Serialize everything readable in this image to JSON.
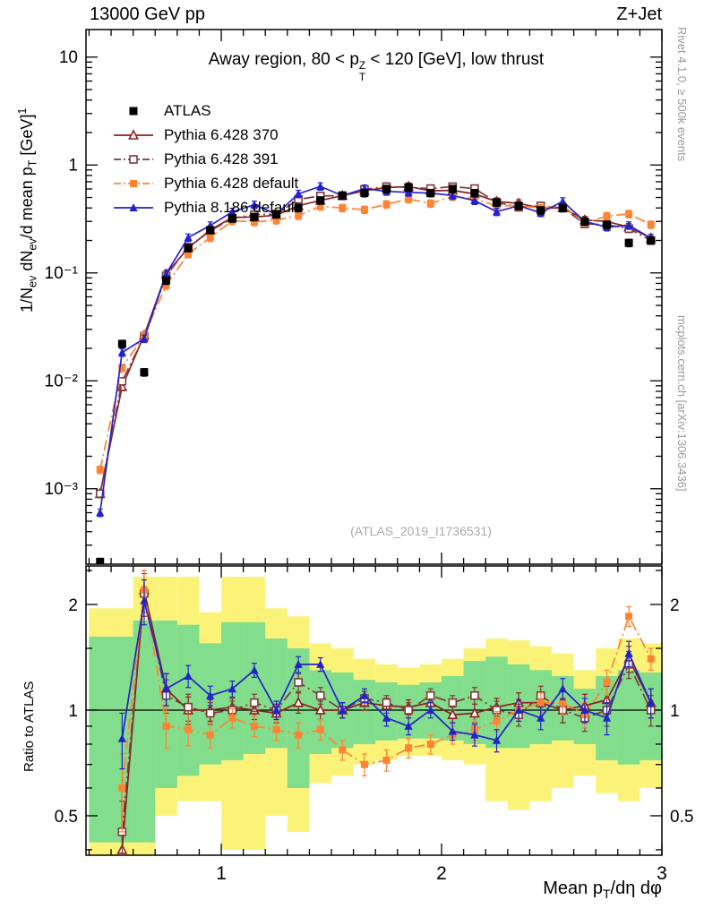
{
  "header": {
    "left": "13000 GeV pp",
    "right": "Z+Jet"
  },
  "side_notes": {
    "right_top": "Rivet 4.1.0, ≥ 500k events",
    "right_bottom": "mcplots.cern.ch [arXiv:1306.3436]"
  },
  "watermark": "(ATLAS_2019_I1736531)",
  "labels": {
    "title": [
      {
        "t": "Away region, 80 < p"
      },
      {
        "stack": {
          "sup": "Z",
          "sub": "T"
        }
      },
      {
        "t": " < 120 [GeV], low thrust"
      }
    ],
    "y_main": [
      {
        "t": "1/N"
      },
      {
        "t": "ev",
        "sub": true
      },
      {
        "t": " dN"
      },
      {
        "t": "ev",
        "sub": true
      },
      {
        "t": "/d mean p"
      },
      {
        "t": "T",
        "sub": true
      },
      {
        "t": " [GeV]"
      },
      {
        "t": "1",
        "sup": true
      }
    ],
    "y_ratio": "Ratio to ATLAS",
    "x": [
      {
        "t": "Mean p"
      },
      {
        "t": "T",
        "sub": true
      },
      {
        "t": "/dη dφ"
      }
    ]
  },
  "chart_data": {
    "type": "line",
    "title": "Away region, 80 < pT(Z) < 120 [GeV], low thrust",
    "xlabel": "Mean pT/deta dphi",
    "ylabel_main": "1/Nev dNev/d mean pT [GeV]^-1",
    "ylabel_ratio": "Ratio to ATLAS",
    "legend_position": "top-left",
    "x": [
      0.45,
      0.55,
      0.65,
      0.75,
      0.85,
      0.95,
      1.05,
      1.15,
      1.25,
      1.35,
      1.45,
      1.55,
      1.65,
      1.75,
      1.85,
      1.95,
      2.05,
      2.15,
      2.25,
      2.35,
      2.45,
      2.55,
      2.65,
      2.75,
      2.85,
      2.95
    ],
    "axes": {
      "x": {
        "min": 0.386,
        "max": 3.0,
        "major_ticks": [
          1,
          2,
          3
        ],
        "minor_step": 0.1
      },
      "y_main": {
        "scale": "log",
        "min": 0.0002,
        "max": 18,
        "ticks": [
          {
            "v": 0.001,
            "label": "10⁻³"
          },
          {
            "v": 0.01,
            "label": "10⁻²"
          },
          {
            "v": 0.1,
            "label": "10⁻¹"
          },
          {
            "v": 1,
            "label": "1"
          },
          {
            "v": 10,
            "label": "10"
          }
        ]
      },
      "y_ratio": {
        "scale": "log",
        "min": 0.386,
        "max": 2.575,
        "ticks": [
          {
            "v": 0.5,
            "label": "0.5"
          },
          {
            "v": 1,
            "label": "1"
          },
          {
            "v": 2,
            "label": "2"
          }
        ],
        "minor": [
          0.4,
          0.6,
          0.7,
          0.8,
          0.9,
          1.5,
          2.5
        ]
      }
    },
    "yerr_frac": 0.08,
    "ratio_err": [
      0,
      0.15,
      0.3,
      0.12,
      0.09,
      0.07,
      0.06,
      0.06,
      0.06,
      0.07,
      0.06,
      0.05,
      0.05,
      0.05,
      0.05,
      0.05,
      0.05,
      0.06,
      0.06,
      0.07,
      0.07,
      0.08,
      0.08,
      0.1,
      0.12,
      0.1
    ],
    "series": [
      {
        "name": "ATLAS",
        "color": "#000000",
        "marker": "square-filled",
        "line": "none",
        "values": [
          0.00021,
          0.022,
          0.012,
          0.085,
          0.17,
          0.25,
          0.32,
          0.33,
          0.35,
          0.4,
          0.47,
          0.52,
          0.55,
          0.6,
          0.62,
          0.55,
          0.6,
          0.55,
          0.45,
          0.42,
          0.38,
          0.4,
          0.3,
          0.28,
          0.19,
          0.2
        ],
        "ratio": null
      },
      {
        "name": "Pythia 6.428 370",
        "color": "#8f1f1f",
        "marker": "triangle-open",
        "line": "solid",
        "values": [
          0.0009,
          0.0088,
          0.0264,
          0.098,
          0.17,
          0.25,
          0.326,
          0.33,
          0.343,
          0.42,
          0.47,
          0.52,
          0.578,
          0.618,
          0.632,
          0.578,
          0.582,
          0.539,
          0.459,
          0.441,
          0.399,
          0.4,
          0.309,
          0.3,
          0.266,
          0.21
        ],
        "ratio": [
          null,
          0.4,
          2.2,
          1.15,
          1.0,
          1.0,
          1.02,
          1.0,
          0.98,
          1.05,
          1.0,
          1.0,
          1.05,
          1.03,
          1.02,
          1.05,
          0.97,
          0.98,
          1.02,
          1.05,
          1.05,
          1.0,
          1.03,
          1.07,
          1.4,
          1.05
        ]
      },
      {
        "name": "Pythia 6.428 391",
        "color": "#7e3a3a",
        "marker": "square-open",
        "line": "dashdot",
        "values": [
          0.0009,
          0.0099,
          0.0258,
          0.094,
          0.173,
          0.245,
          0.32,
          0.347,
          0.35,
          0.48,
          0.517,
          0.52,
          0.594,
          0.63,
          0.62,
          0.605,
          0.63,
          0.605,
          0.45,
          0.407,
          0.418,
          0.4,
          0.285,
          0.28,
          0.257,
          0.2
        ],
        "ratio": [
          null,
          0.45,
          2.15,
          1.1,
          1.02,
          0.98,
          1.0,
          1.05,
          1.0,
          1.2,
          1.1,
          1.0,
          1.08,
          1.05,
          1.0,
          1.1,
          1.05,
          1.1,
          1.0,
          0.97,
          1.1,
          1.0,
          0.95,
          1.0,
          1.35,
          1.0
        ]
      },
      {
        "name": "Pythia 6.428 default",
        "color": "#ff8332",
        "marker": "square-filled",
        "line": "dashdot",
        "values": [
          0.0015,
          0.0132,
          0.0264,
          0.0765,
          0.15,
          0.2125,
          0.304,
          0.297,
          0.308,
          0.34,
          0.414,
          0.4,
          0.385,
          0.432,
          0.484,
          0.44,
          0.51,
          0.484,
          0.419,
          0.42,
          0.399,
          0.42,
          0.291,
          0.336,
          0.352,
          0.28
        ],
        "ratio": [
          null,
          0.6,
          2.2,
          0.9,
          0.88,
          0.85,
          0.95,
          0.9,
          0.88,
          0.85,
          0.88,
          0.77,
          0.7,
          0.72,
          0.78,
          0.8,
          0.85,
          0.88,
          0.93,
          1.0,
          1.05,
          1.05,
          0.97,
          1.2,
          1.85,
          1.4
        ]
      },
      {
        "name": "Pythia 8.186 default",
        "color": "#2323cc",
        "marker": "triangle-filled",
        "line": "solid",
        "values": [
          0.0006,
          0.0183,
          0.0246,
          0.098,
          0.2125,
          0.275,
          0.368,
          0.429,
          0.35,
          0.54,
          0.634,
          0.52,
          0.605,
          0.57,
          0.558,
          0.55,
          0.522,
          0.4675,
          0.369,
          0.42,
          0.361,
          0.46,
          0.3,
          0.266,
          0.2755,
          0.21
        ],
        "ratio": [
          null,
          0.83,
          2.05,
          1.15,
          1.25,
          1.1,
          1.15,
          1.3,
          1.0,
          1.35,
          1.35,
          1.0,
          1.1,
          0.95,
          0.9,
          1.0,
          0.87,
          0.85,
          0.82,
          1.0,
          0.95,
          1.15,
          1.0,
          0.95,
          1.45,
          1.05
        ]
      }
    ],
    "reference_line": 1,
    "bands": {
      "colors": {
        "yellow": "#faf378",
        "green": "#82dd8c"
      },
      "yellow": {
        "lo": [
          0.35,
          0.35,
          0.35,
          0.5,
          0.55,
          0.55,
          0.4,
          0.4,
          0.5,
          0.45,
          0.62,
          0.65,
          0.7,
          0.72,
          0.74,
          0.74,
          0.72,
          0.7,
          0.55,
          0.52,
          0.55,
          0.6,
          0.65,
          0.58,
          0.55,
          0.6
        ],
        "hi": [
          1.95,
          1.95,
          2.4,
          2.4,
          2.4,
          1.9,
          2.4,
          2.4,
          1.95,
          1.85,
          1.55,
          1.5,
          1.4,
          1.35,
          1.32,
          1.35,
          1.4,
          1.5,
          1.6,
          1.58,
          1.52,
          1.45,
          1.3,
          1.5,
          1.6,
          1.55
        ]
      },
      "green": {
        "lo": [
          0.42,
          0.42,
          0.42,
          0.6,
          0.65,
          0.7,
          0.72,
          0.75,
          0.78,
          0.6,
          0.75,
          0.78,
          0.8,
          0.82,
          0.83,
          0.83,
          0.82,
          0.8,
          0.78,
          0.78,
          0.8,
          0.82,
          0.8,
          0.72,
          0.7,
          0.72
        ],
        "hi": [
          1.62,
          1.62,
          1.8,
          1.8,
          1.75,
          1.55,
          1.78,
          1.78,
          1.6,
          1.5,
          1.3,
          1.28,
          1.22,
          1.2,
          1.18,
          1.2,
          1.25,
          1.38,
          1.42,
          1.35,
          1.3,
          1.25,
          1.15,
          1.25,
          1.3,
          1.28
        ]
      }
    }
  }
}
